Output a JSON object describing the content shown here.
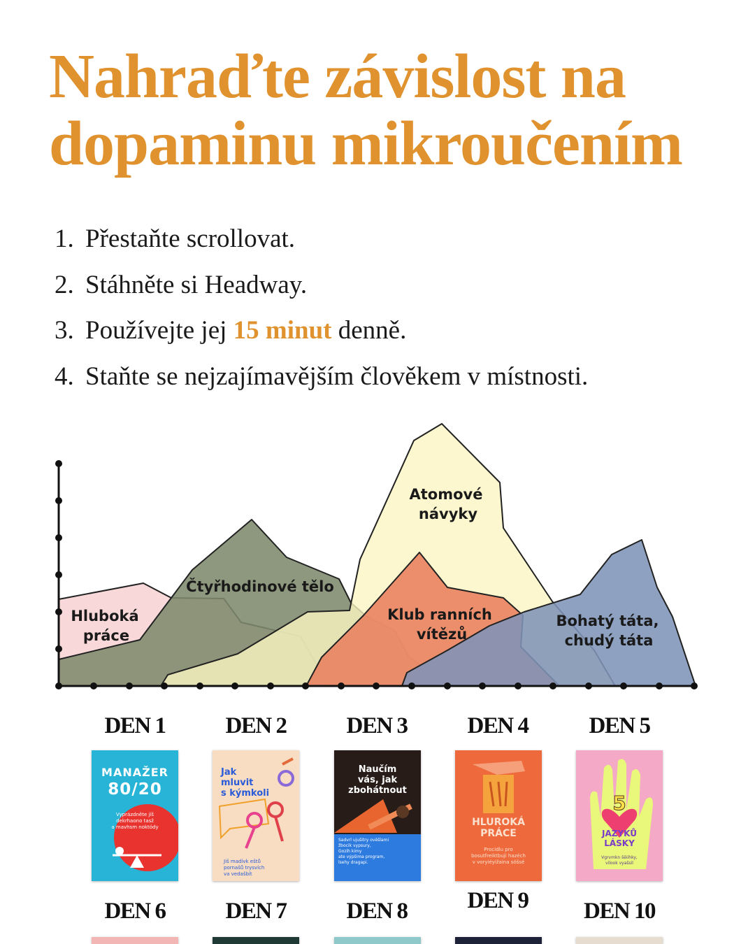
{
  "title": [
    "Nahraďte závislost na",
    "dopaminu mikroučením"
  ],
  "steps": [
    {
      "number": "1.",
      "text": "Přestaňte scrollovat."
    },
    {
      "number": "2.",
      "text": "Stáhněte si Headway."
    },
    {
      "number": "3.",
      "text_before": "Používejte jej",
      "highlight": "15 minut",
      "text_after": "denně."
    },
    {
      "number": "4.",
      "text": "Staňte se nejzajímavějším člověkem v místnosti."
    }
  ],
  "chart": {
    "mountains": [
      {
        "label_lines": [
          "Hluboká",
          "práce"
        ]
      },
      {
        "label_lines": [
          "Čtyřhodinové tělo"
        ]
      },
      {
        "label_lines": [
          "Atomové",
          "návyky"
        ]
      },
      {
        "label_lines": [
          "Klub ranních",
          "vítězů"
        ]
      },
      {
        "label_lines": [
          "Bohatý táta,",
          "chudý táta"
        ]
      }
    ]
  },
  "days": [
    {
      "label": "DEN 1",
      "book": {
        "title_lines": [
          "MANAŽER",
          "80/20"
        ],
        "subtitle_lines": [
          "Vyprázdněte jíš",
          "dekrhaono tasž",
          "a mavhsm noktódy"
        ]
      }
    },
    {
      "label": "DEN 2",
      "book": {
        "title_lines": [
          "Jak",
          "mluvit",
          "s kýmkoli"
        ],
        "subtitle_lines": [
          "Jiš madívk eštů",
          "pornašů trysvích",
          "va vedašbít"
        ]
      }
    },
    {
      "label": "DEN 3",
      "book": {
        "title_lines": [
          "Naučím",
          "vás, jak",
          "zbohátnout"
        ],
        "subtitle_lines": [
          "Sadvrl ujušitry ověšlami",
          "žbocik vypsury,",
          "Gozih kimy",
          "ate výpšima program,",
          "lsehy dragapi."
        ]
      }
    },
    {
      "label": "DEN 4",
      "book": {
        "title_lines": [
          "HLUROKÁ",
          "PRÁCE"
        ],
        "subtitle_lines": [
          "Procidlu pro",
          "bosutfreiktbuji hazéch",
          "v voryiéyižaina sóšsé"
        ]
      }
    },
    {
      "label": "DEN 5",
      "book": {
        "number": "5",
        "title_lines": [
          "JAZYKŮ",
          "LÁSKY"
        ],
        "subtitle_lines": [
          "Vgrvmkn šěiihky,",
          "vilook vyašsil"
        ]
      }
    },
    {
      "label": "DEN 6"
    },
    {
      "label": "DEN 7"
    },
    {
      "label": "DEN 8"
    },
    {
      "label": "DEN 9"
    },
    {
      "label": "DEN 10"
    }
  ]
}
